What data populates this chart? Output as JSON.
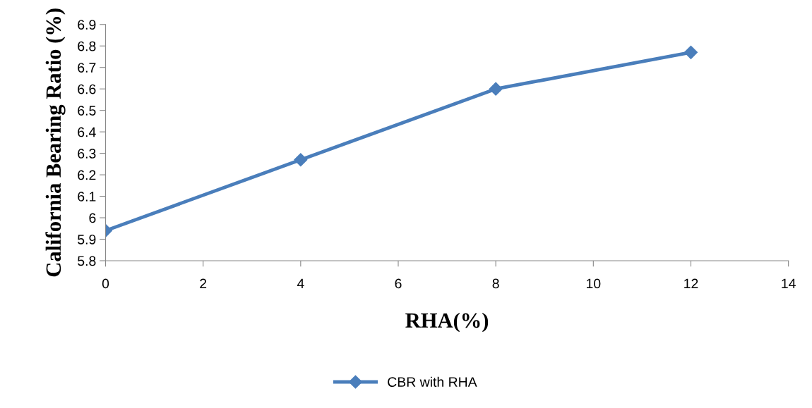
{
  "chart_data": {
    "type": "line",
    "xlabel": "RHA(%)",
    "ylabel": "California Bearing Ratio (%)",
    "x": [
      0,
      4,
      8,
      12
    ],
    "series": [
      {
        "name": "CBR with RHA",
        "color": "#4a7ebb",
        "values": [
          5.94,
          6.27,
          6.6,
          6.77
        ]
      }
    ],
    "xlim": [
      0,
      14
    ],
    "xticks": [
      0,
      2,
      4,
      6,
      8,
      10,
      12,
      14
    ],
    "ylim": [
      5.8,
      6.9
    ],
    "yticks": [
      {
        "value": 5.8,
        "label": "5.8"
      },
      {
        "value": 5.9,
        "label": "5.9"
      },
      {
        "value": 6.0,
        "label": "6"
      },
      {
        "value": 6.1,
        "label": "6.1"
      },
      {
        "value": 6.2,
        "label": "6.2"
      },
      {
        "value": 6.3,
        "label": "6.3"
      },
      {
        "value": 6.4,
        "label": "6.4"
      },
      {
        "value": 6.5,
        "label": "6.5"
      },
      {
        "value": 6.6,
        "label": "6.6"
      },
      {
        "value": 6.7,
        "label": "6.7"
      },
      {
        "value": 6.8,
        "label": "6.8"
      },
      {
        "value": 6.9,
        "label": "6.9"
      }
    ],
    "marker": "diamond",
    "line_style": "solid",
    "grid": false,
    "legend": "bottom"
  }
}
